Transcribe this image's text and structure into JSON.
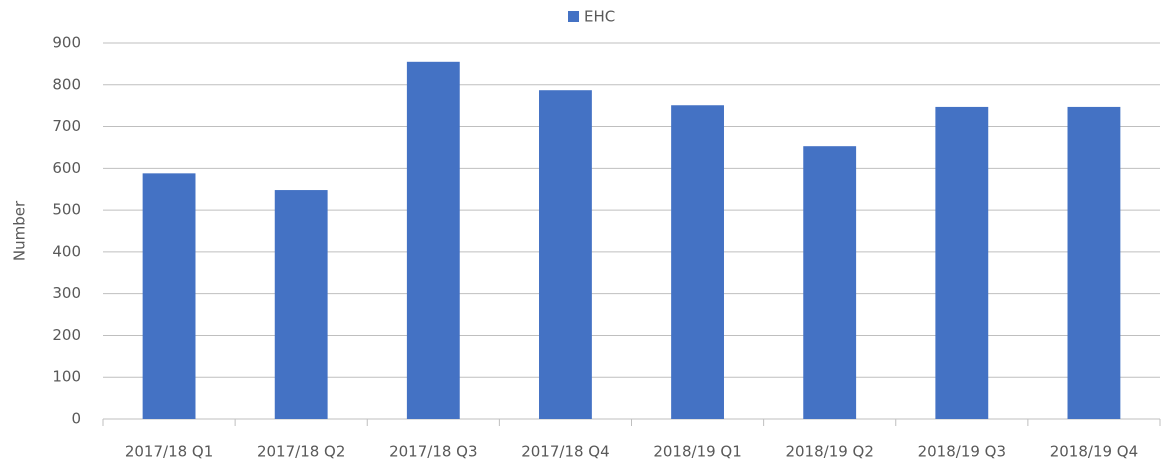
{
  "chart_data": {
    "type": "bar",
    "y_label": "Number",
    "categories": [
      "2017/18 Q1",
      "2017/18 Q2",
      "2017/18 Q3",
      "2017/18 Q4",
      "2018/19 Q1",
      "2018/19 Q2",
      "2018/19 Q3",
      "2018/19 Q4"
    ],
    "series": [
      {
        "name": "EHC",
        "color": "#4472c4",
        "values": [
          588,
          548,
          855,
          787,
          751,
          653,
          747,
          747
        ]
      }
    ],
    "ylim": [
      0,
      900
    ],
    "yticks": [
      0,
      100,
      200,
      300,
      400,
      500,
      600,
      700,
      800,
      900
    ],
    "grid": true,
    "legend": "top"
  }
}
